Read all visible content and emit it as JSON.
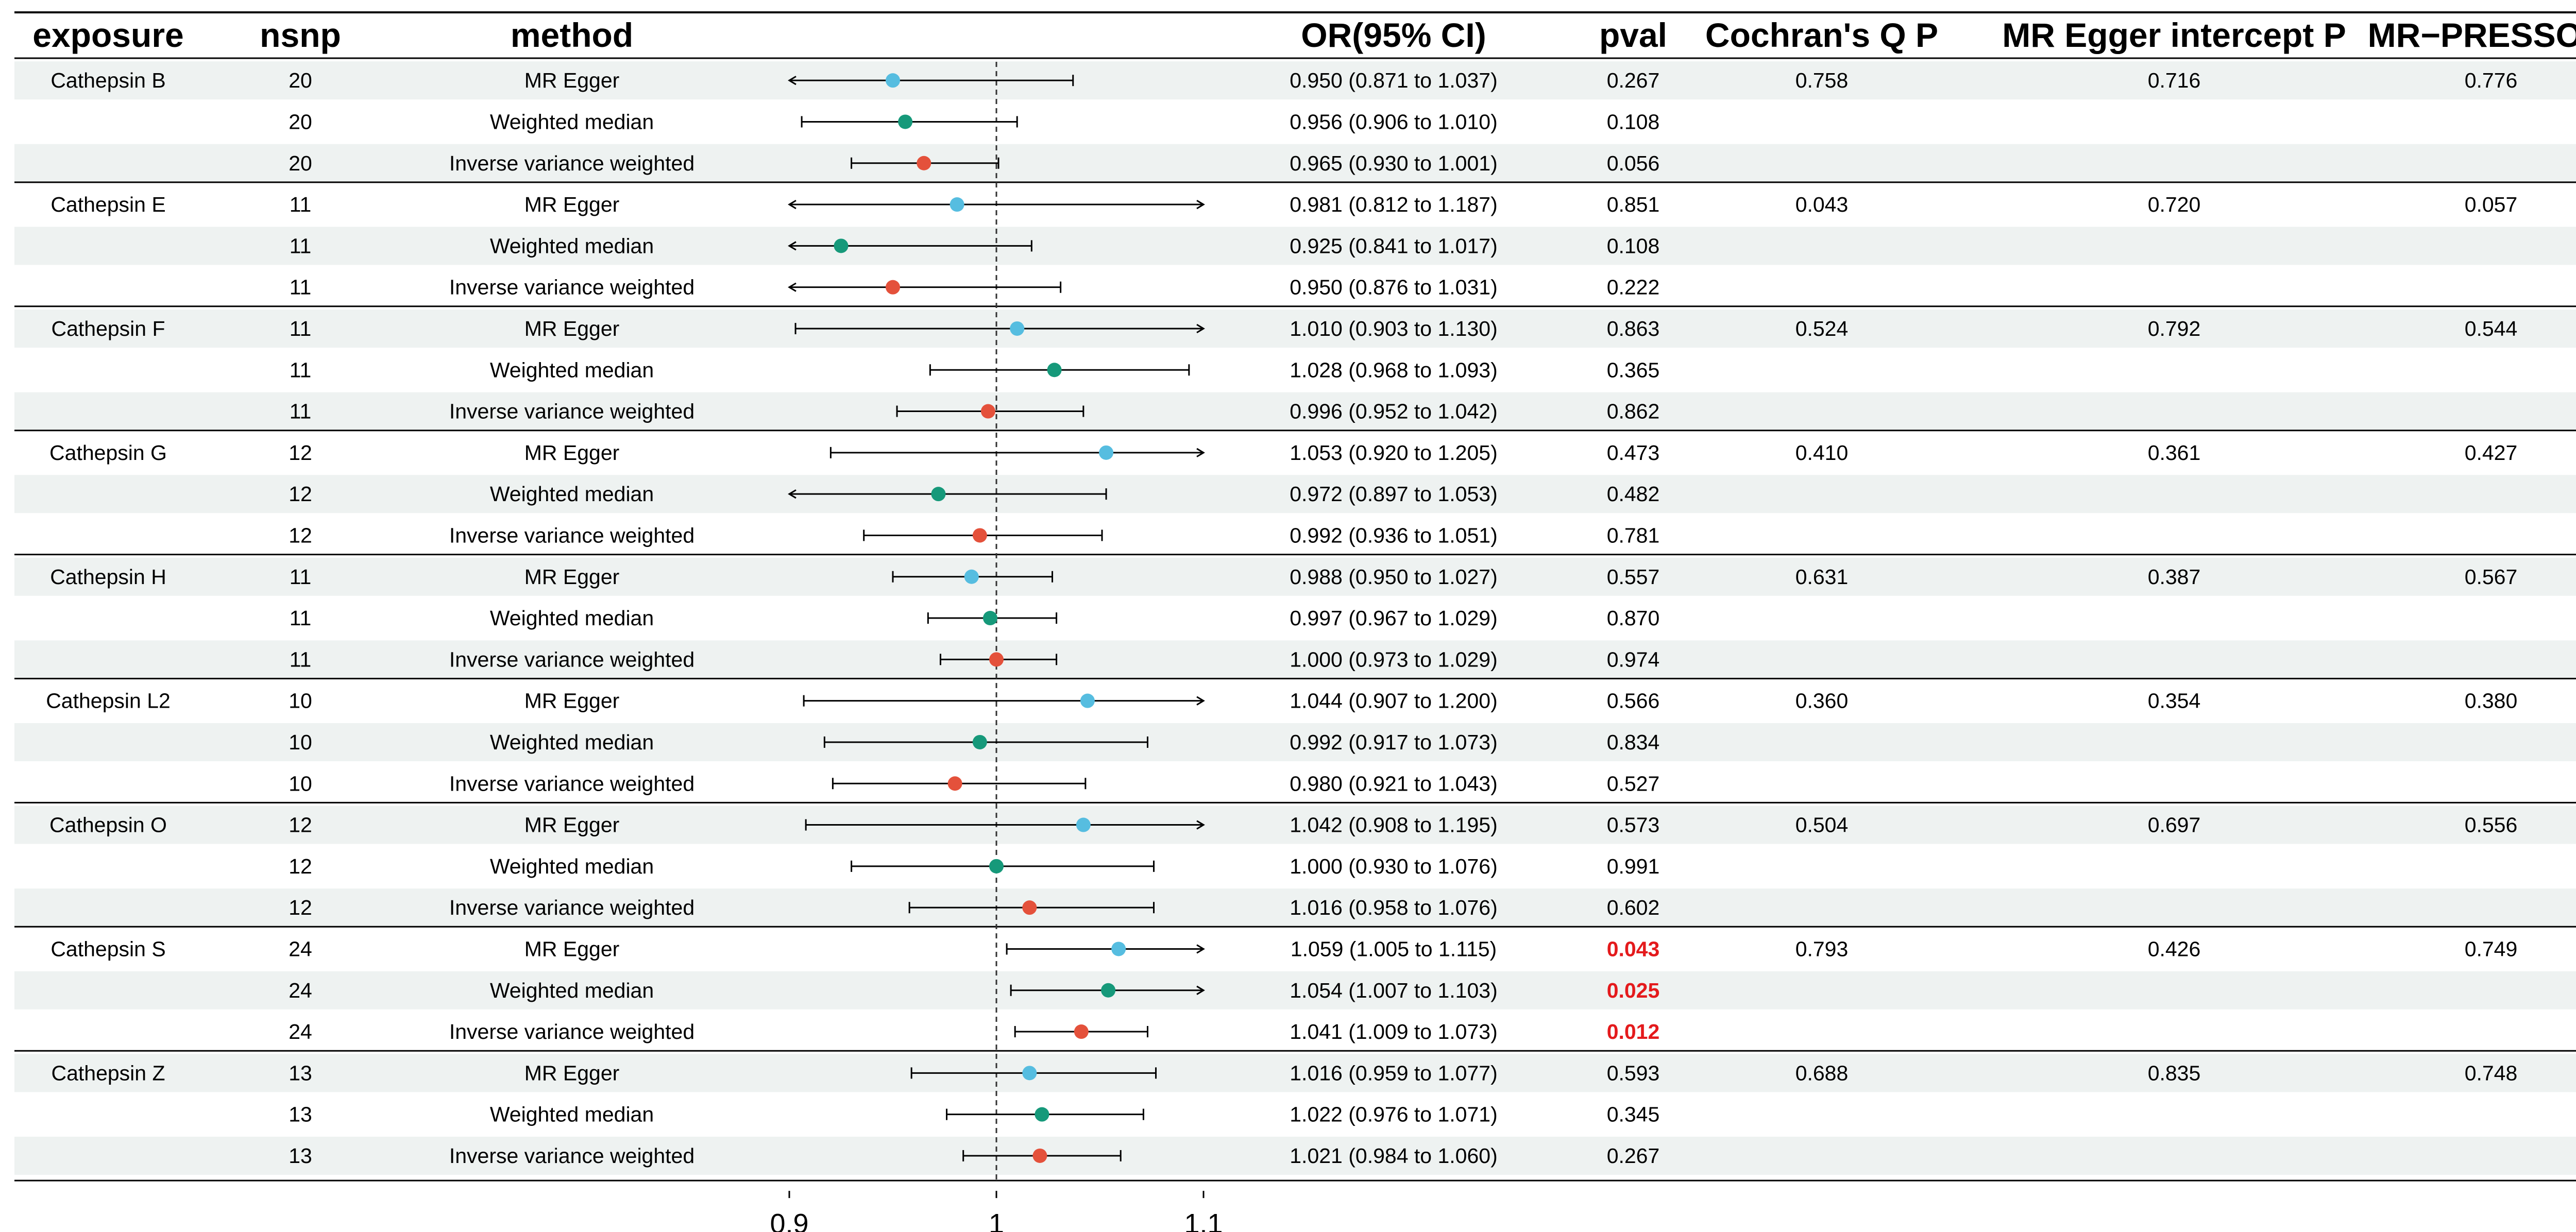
{
  "chart_data": {
    "type": "forest",
    "columns": {
      "exposure": "exposure",
      "nsnp": "nsnp",
      "method": "method",
      "or_ci": "OR(95% CI)",
      "pval": "pval",
      "cochran": "Cochran's Q P",
      "egger": "MR Egger intercept P",
      "presso": "MR−PRESSO P"
    },
    "axis": {
      "min": 0.9,
      "max": 1.1,
      "ref": 1.0,
      "ticks": [
        "0.9",
        "1",
        "1.1"
      ]
    },
    "method_colors": {
      "MR Egger": "#56bde0",
      "Weighted median": "#16997a",
      "Inverse variance weighted": "#e4513b"
    },
    "sig_color": "#e41a1c",
    "groups": [
      {
        "exposure": "Cathepsin B",
        "cochran": "0.758",
        "egger": "0.716",
        "presso": "0.776",
        "rows": [
          {
            "nsnp": "20",
            "method": "MR Egger",
            "or": 0.95,
            "lo": 0.871,
            "hi": 1.037,
            "or_ci": "0.950 (0.871 to 1.037)",
            "pval": "0.267"
          },
          {
            "nsnp": "20",
            "method": "Weighted median",
            "or": 0.956,
            "lo": 0.906,
            "hi": 1.01,
            "or_ci": "0.956 (0.906 to 1.010)",
            "pval": "0.108"
          },
          {
            "nsnp": "20",
            "method": "Inverse variance weighted",
            "or": 0.965,
            "lo": 0.93,
            "hi": 1.001,
            "or_ci": "0.965 (0.930 to 1.001)",
            "pval": "0.056"
          }
        ]
      },
      {
        "exposure": "Cathepsin E",
        "cochran": "0.043",
        "egger": "0.720",
        "presso": "0.057",
        "rows": [
          {
            "nsnp": "11",
            "method": "MR Egger",
            "or": 0.981,
            "lo": 0.812,
            "hi": 1.187,
            "or_ci": "0.981 (0.812 to 1.187)",
            "pval": "0.851"
          },
          {
            "nsnp": "11",
            "method": "Weighted median",
            "or": 0.925,
            "lo": 0.841,
            "hi": 1.017,
            "or_ci": "0.925 (0.841 to 1.017)",
            "pval": "0.108"
          },
          {
            "nsnp": "11",
            "method": "Inverse variance weighted",
            "or": 0.95,
            "lo": 0.876,
            "hi": 1.031,
            "or_ci": "0.950 (0.876 to 1.031)",
            "pval": "0.222"
          }
        ]
      },
      {
        "exposure": "Cathepsin F",
        "cochran": "0.524",
        "egger": "0.792",
        "presso": "0.544",
        "rows": [
          {
            "nsnp": "11",
            "method": "MR Egger",
            "or": 1.01,
            "lo": 0.903,
            "hi": 1.13,
            "or_ci": "1.010 (0.903 to 1.130)",
            "pval": "0.863"
          },
          {
            "nsnp": "11",
            "method": "Weighted median",
            "or": 1.028,
            "lo": 0.968,
            "hi": 1.093,
            "or_ci": "1.028 (0.968 to 1.093)",
            "pval": "0.365"
          },
          {
            "nsnp": "11",
            "method": "Inverse variance weighted",
            "or": 0.996,
            "lo": 0.952,
            "hi": 1.042,
            "or_ci": "0.996 (0.952 to 1.042)",
            "pval": "0.862"
          }
        ]
      },
      {
        "exposure": "Cathepsin G",
        "cochran": "0.410",
        "egger": "0.361",
        "presso": "0.427",
        "rows": [
          {
            "nsnp": "12",
            "method": "MR Egger",
            "or": 1.053,
            "lo": 0.92,
            "hi": 1.205,
            "or_ci": "1.053 (0.920 to 1.205)",
            "pval": "0.473"
          },
          {
            "nsnp": "12",
            "method": "Weighted median",
            "or": 0.972,
            "lo": 0.897,
            "hi": 1.053,
            "or_ci": "0.972 (0.897 to 1.053)",
            "pval": "0.482"
          },
          {
            "nsnp": "12",
            "method": "Inverse variance weighted",
            "or": 0.992,
            "lo": 0.936,
            "hi": 1.051,
            "or_ci": "0.992 (0.936 to 1.051)",
            "pval": "0.781"
          }
        ]
      },
      {
        "exposure": "Cathepsin H",
        "cochran": "0.631",
        "egger": "0.387",
        "presso": "0.567",
        "rows": [
          {
            "nsnp": "11",
            "method": "MR Egger",
            "or": 0.988,
            "lo": 0.95,
            "hi": 1.027,
            "or_ci": "0.988 (0.950 to 1.027)",
            "pval": "0.557"
          },
          {
            "nsnp": "11",
            "method": "Weighted median",
            "or": 0.997,
            "lo": 0.967,
            "hi": 1.029,
            "or_ci": "0.997 (0.967 to 1.029)",
            "pval": "0.870"
          },
          {
            "nsnp": "11",
            "method": "Inverse variance weighted",
            "or": 1.0,
            "lo": 0.973,
            "hi": 1.029,
            "or_ci": "1.000 (0.973 to 1.029)",
            "pval": "0.974"
          }
        ]
      },
      {
        "exposure": "Cathepsin L2",
        "cochran": "0.360",
        "egger": "0.354",
        "presso": "0.380",
        "rows": [
          {
            "nsnp": "10",
            "method": "MR Egger",
            "or": 1.044,
            "lo": 0.907,
            "hi": 1.2,
            "or_ci": "1.044 (0.907 to 1.200)",
            "pval": "0.566"
          },
          {
            "nsnp": "10",
            "method": "Weighted median",
            "or": 0.992,
            "lo": 0.917,
            "hi": 1.073,
            "or_ci": "0.992 (0.917 to 1.073)",
            "pval": "0.834"
          },
          {
            "nsnp": "10",
            "method": "Inverse variance weighted",
            "or": 0.98,
            "lo": 0.921,
            "hi": 1.043,
            "or_ci": "0.980 (0.921 to 1.043)",
            "pval": "0.527"
          }
        ]
      },
      {
        "exposure": "Cathepsin O",
        "cochran": "0.504",
        "egger": "0.697",
        "presso": "0.556",
        "rows": [
          {
            "nsnp": "12",
            "method": "MR Egger",
            "or": 1.042,
            "lo": 0.908,
            "hi": 1.195,
            "or_ci": "1.042 (0.908 to 1.195)",
            "pval": "0.573"
          },
          {
            "nsnp": "12",
            "method": "Weighted median",
            "or": 1.0,
            "lo": 0.93,
            "hi": 1.076,
            "or_ci": "1.000 (0.930 to 1.076)",
            "pval": "0.991"
          },
          {
            "nsnp": "12",
            "method": "Inverse variance weighted",
            "or": 1.016,
            "lo": 0.958,
            "hi": 1.076,
            "or_ci": "1.016 (0.958 to 1.076)",
            "pval": "0.602"
          }
        ]
      },
      {
        "exposure": "Cathepsin S",
        "cochran": "0.793",
        "egger": "0.426",
        "presso": "0.749",
        "rows": [
          {
            "nsnp": "24",
            "method": "MR Egger",
            "or": 1.059,
            "lo": 1.005,
            "hi": 1.115,
            "or_ci": "1.059 (1.005 to 1.115)",
            "pval": "0.043",
            "sig": true
          },
          {
            "nsnp": "24",
            "method": "Weighted median",
            "or": 1.054,
            "lo": 1.007,
            "hi": 1.103,
            "or_ci": "1.054 (1.007 to 1.103)",
            "pval": "0.025",
            "sig": true
          },
          {
            "nsnp": "24",
            "method": "Inverse variance weighted",
            "or": 1.041,
            "lo": 1.009,
            "hi": 1.073,
            "or_ci": "1.041 (1.009 to 1.073)",
            "pval": "0.012",
            "sig": true
          }
        ]
      },
      {
        "exposure": "Cathepsin Z",
        "cochran": "0.688",
        "egger": "0.835",
        "presso": "0.748",
        "rows": [
          {
            "nsnp": "13",
            "method": "MR Egger",
            "or": 1.016,
            "lo": 0.959,
            "hi": 1.077,
            "or_ci": "1.016 (0.959 to 1.077)",
            "pval": "0.593"
          },
          {
            "nsnp": "13",
            "method": "Weighted median",
            "or": 1.022,
            "lo": 0.976,
            "hi": 1.071,
            "or_ci": "1.022 (0.976 to 1.071)",
            "pval": "0.345"
          },
          {
            "nsnp": "13",
            "method": "Inverse variance weighted",
            "or": 1.021,
            "lo": 0.984,
            "hi": 1.06,
            "or_ci": "1.021 (0.984 to 1.060)",
            "pval": "0.267"
          }
        ]
      }
    ]
  }
}
